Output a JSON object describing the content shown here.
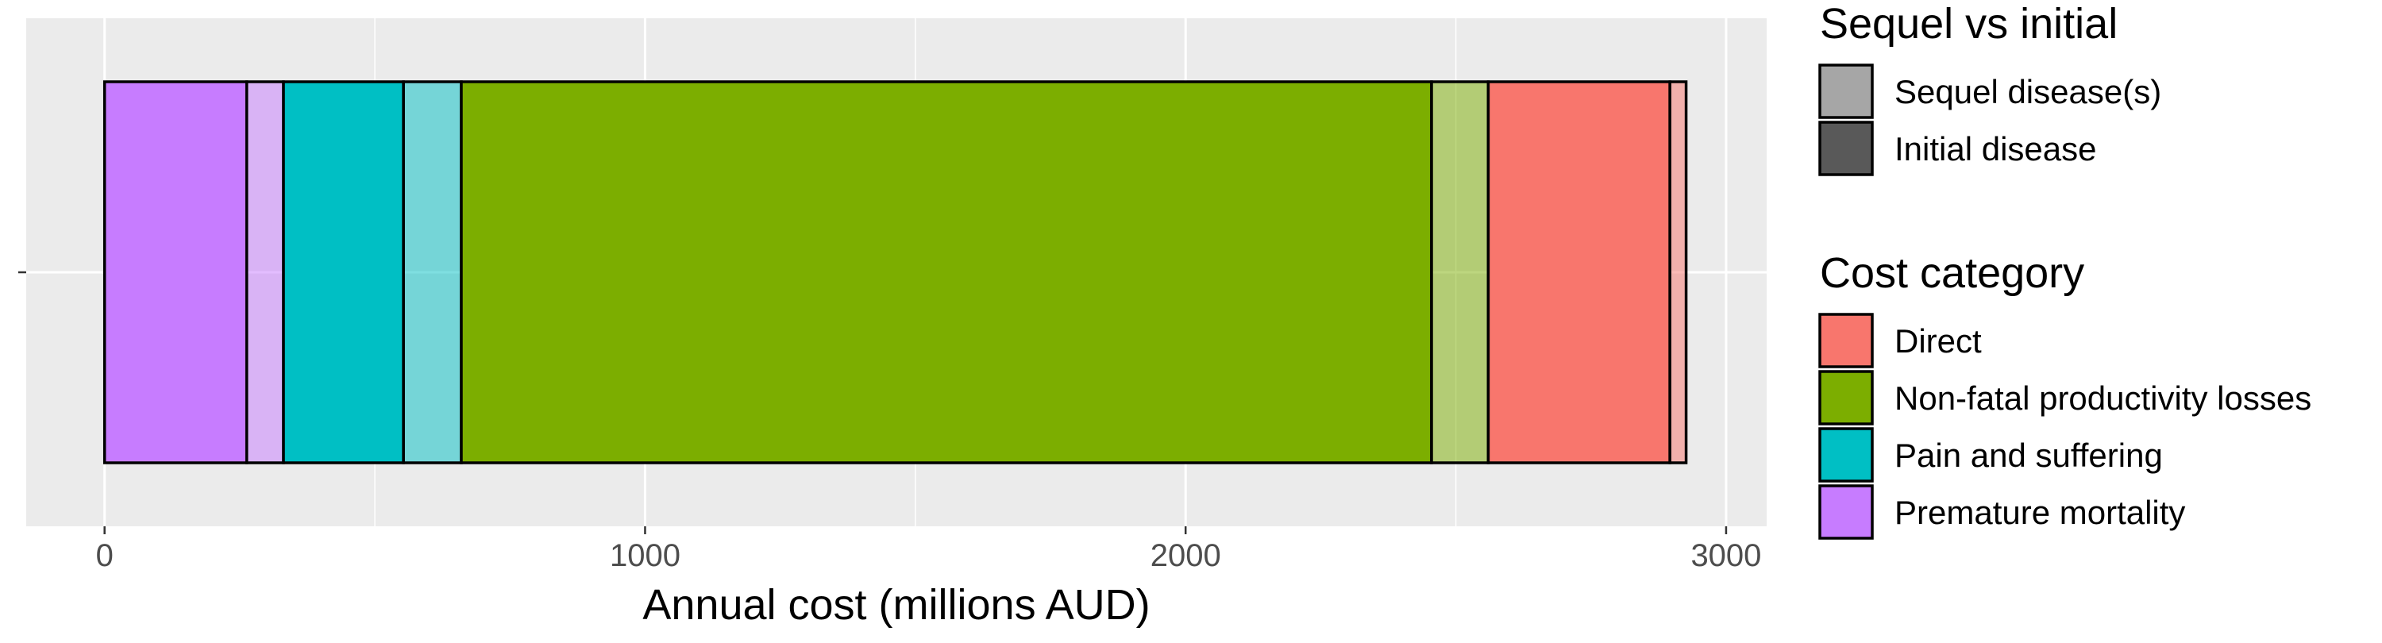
{
  "chart_data": {
    "type": "bar",
    "orientation": "horizontal",
    "stacked": true,
    "xlabel": "Annual cost (millions AUD)",
    "ylabel": "",
    "xlim": [
      -145,
      3075
    ],
    "x_ticks": [
      0,
      1000,
      2000,
      3000
    ],
    "grid": true,
    "segments": [
      {
        "category": "Premature mortality",
        "group": "Initial disease",
        "value": 263
      },
      {
        "category": "Premature mortality",
        "group": "Sequel disease(s)",
        "value": 68
      },
      {
        "category": "Pain and suffering",
        "group": "Initial disease",
        "value": 222
      },
      {
        "category": "Pain and suffering",
        "group": "Sequel disease(s)",
        "value": 107
      },
      {
        "category": "Non-fatal productivity losses",
        "group": "Initial disease",
        "value": 1795
      },
      {
        "category": "Non-fatal productivity losses",
        "group": "Sequel disease(s)",
        "value": 105
      },
      {
        "category": "Direct",
        "group": "Initial disease",
        "value": 336
      },
      {
        "category": "Direct",
        "group": "Sequel disease(s)",
        "value": 30
      }
    ],
    "legends": [
      {
        "title": "Sequel vs initial",
        "items": [
          {
            "label": "Sequel disease(s)",
            "color": "#a6a6a6"
          },
          {
            "label": "Initial disease",
            "color": "#595959"
          }
        ]
      },
      {
        "title": "Cost category",
        "items": [
          {
            "label": "Direct",
            "color": "#F8766D"
          },
          {
            "label": "Non-fatal productivity losses",
            "color": "#7CAE00"
          },
          {
            "label": "Pain and suffering",
            "color": "#00BFC4"
          },
          {
            "label": "Premature mortality",
            "color": "#C77CFF"
          }
        ]
      }
    ],
    "legend_position": "right",
    "colors": {
      "Direct": "#F8766D",
      "Non-fatal productivity losses": "#7CAE00",
      "Pain and suffering": "#00BFC4",
      "Premature mortality": "#C77CFF"
    },
    "sequel_alpha": 0.5
  }
}
